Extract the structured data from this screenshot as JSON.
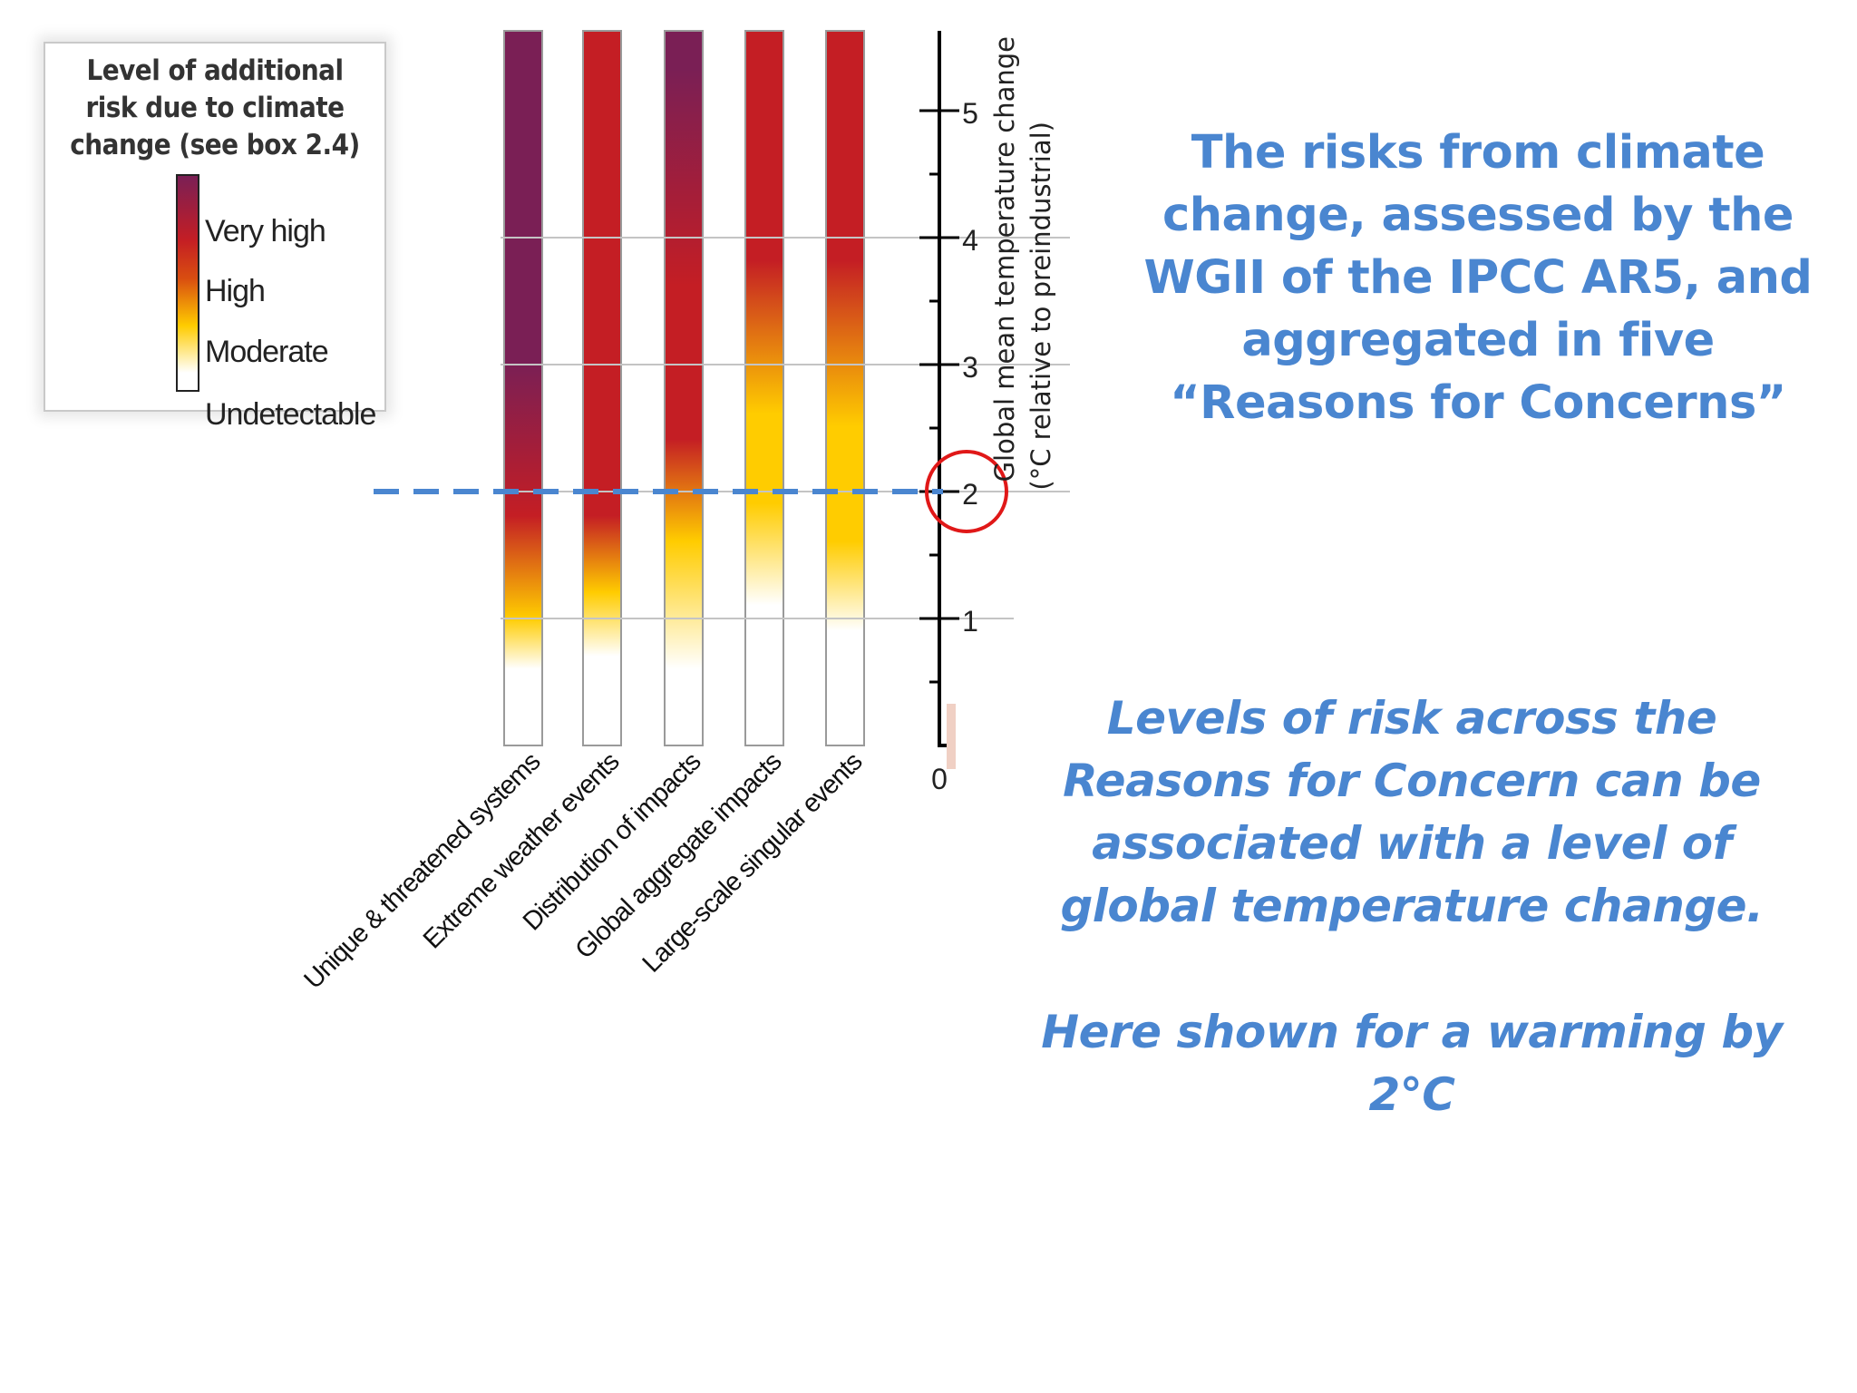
{
  "colors": {
    "very_high": "#7a1f55",
    "high": "#c41e24",
    "moderate": "#ffcc00",
    "undetectable": "#ffffff",
    "text_blue": "#4a86d0",
    "dashed_line": "#4a86d0",
    "highlight_circle": "#e01818"
  },
  "legend": {
    "title": "Level of additional risk due to climate change (see box 2.4)",
    "levels": [
      "Very high",
      "High",
      "Moderate",
      "Undetectable"
    ]
  },
  "headline": "The risks from climate change, assessed by the WGII of the IPCC AR5, and aggregated in five “Reasons for Concerns”",
  "body": "Levels of risk across the Reasons for Concern can be associated with a level of global temperature change.",
  "note": "Here shown for a warming by 2°C",
  "chart_data": {
    "type": "heatmap",
    "categories": [
      "Unique & threatened systems",
      "Extreme weather events",
      "Distribution of impacts",
      "Global aggregate impacts",
      "Large-scale singular events"
    ],
    "ylabel": "Global mean temperature change (°C relative to preindustrial)",
    "ylim": [
      0,
      5.6
    ],
    "yticks": [
      "0",
      "1",
      "2",
      "3",
      "4",
      "5"
    ],
    "grid_lines_at": [
      1,
      2,
      3,
      4
    ],
    "highlight_value": 2,
    "series": [
      {
        "stops": [
          [
            0.6,
            "undetectable"
          ],
          [
            1.0,
            "moderate"
          ],
          [
            1.8,
            "high"
          ],
          [
            3.0,
            "very_high"
          ]
        ]
      },
      {
        "stops": [
          [
            0.7,
            "undetectable"
          ],
          [
            1.2,
            "moderate"
          ],
          [
            1.8,
            "high"
          ]
        ]
      },
      {
        "stops": [
          [
            0.6,
            "undetectable"
          ],
          [
            1.6,
            "moderate"
          ],
          [
            2.4,
            "high"
          ],
          [
            3.6,
            "high"
          ],
          [
            5.3,
            "very_high"
          ]
        ]
      },
      {
        "stops": [
          [
            1.1,
            "undetectable"
          ],
          [
            1.9,
            "moderate"
          ],
          [
            2.6,
            "moderate"
          ],
          [
            3.8,
            "high"
          ]
        ]
      },
      {
        "stops": [
          [
            0.9,
            "undetectable"
          ],
          [
            1.6,
            "moderate"
          ],
          [
            2.5,
            "moderate"
          ],
          [
            3.8,
            "high"
          ]
        ]
      }
    ]
  }
}
